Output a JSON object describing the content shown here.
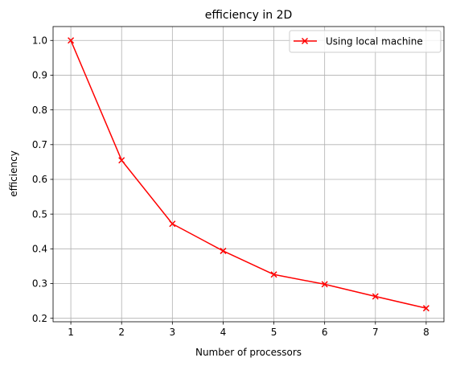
{
  "chart_data": {
    "type": "line",
    "title": "efficiency in 2D",
    "xlabel": "Number of processors",
    "ylabel": "efficiency",
    "xlim": [
      0.65,
      8.35
    ],
    "ylim": [
      0.19,
      1.04
    ],
    "xticks": [
      1,
      2,
      3,
      4,
      5,
      6,
      7,
      8
    ],
    "yticks": [
      0.2,
      0.3,
      0.4,
      0.5,
      0.6,
      0.7,
      0.8,
      0.9,
      1.0
    ],
    "ytick_labels": [
      "0.2",
      "0.3",
      "0.4",
      "0.5",
      "0.6",
      "0.7",
      "0.8",
      "0.9",
      "1.0"
    ],
    "grid": true,
    "legend_position": "top-right",
    "series": [
      {
        "name": "Using local machine",
        "color": "#ff0000",
        "marker": "x",
        "x": [
          1,
          2,
          3,
          4,
          5,
          6,
          7,
          8
        ],
        "y": [
          1.0,
          0.655,
          0.472,
          0.394,
          0.326,
          0.298,
          0.263,
          0.229
        ]
      }
    ]
  }
}
